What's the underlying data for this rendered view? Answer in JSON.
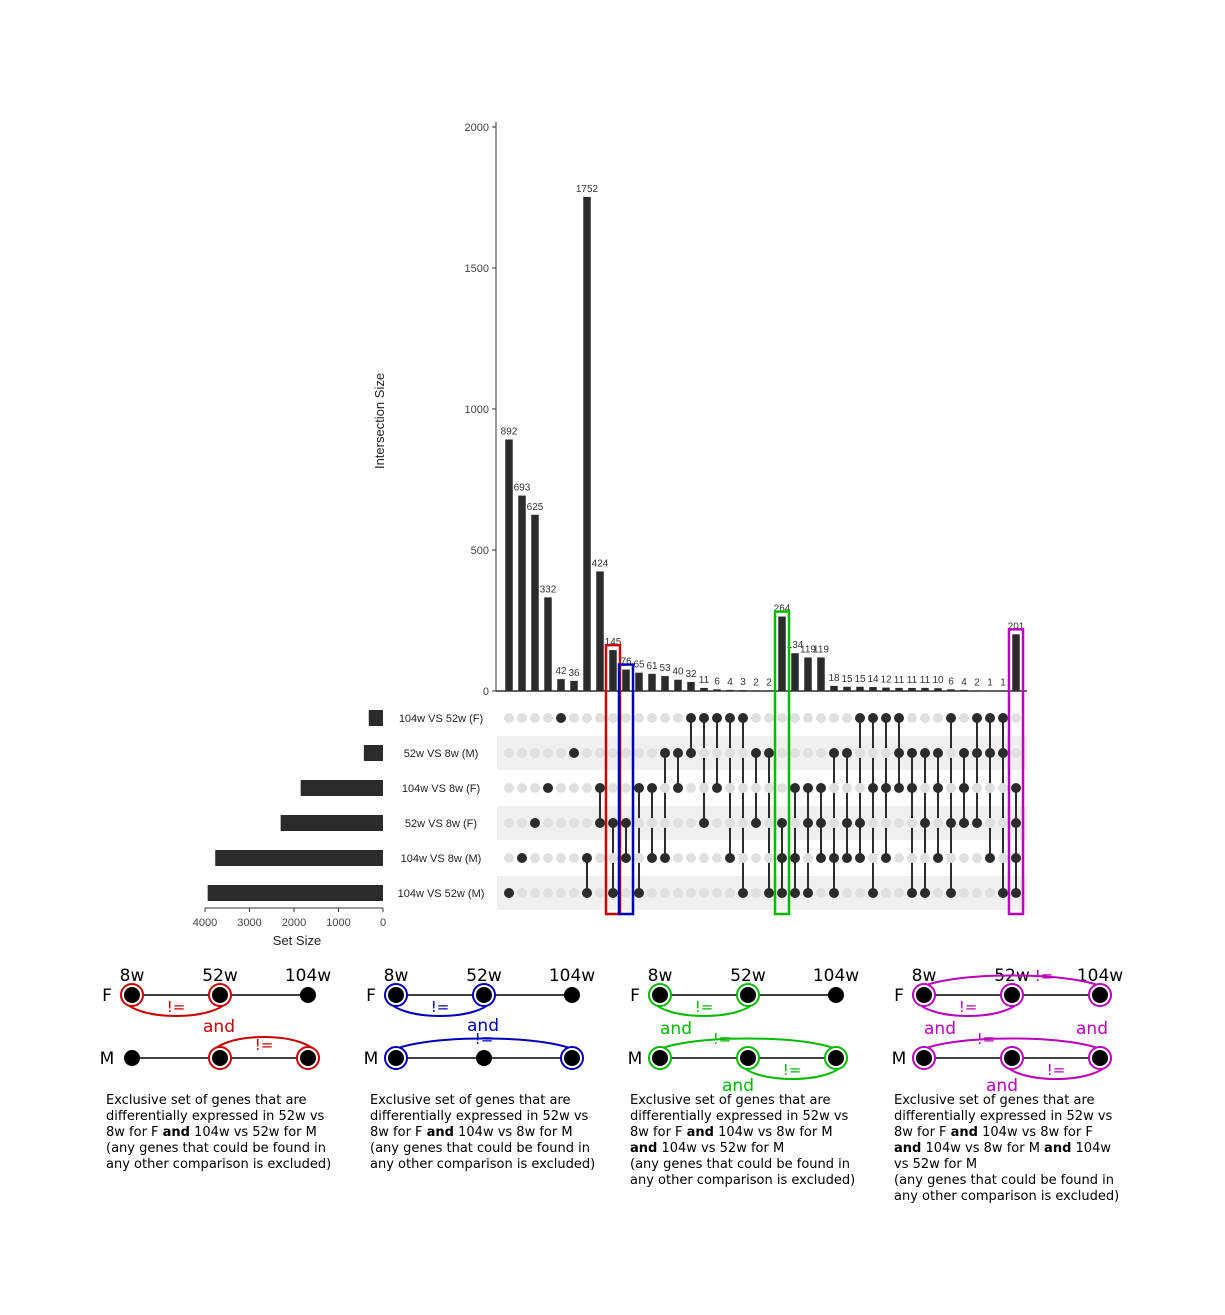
{
  "chart_data": {
    "type": "upset",
    "ylabel": "Intersection Size",
    "ylim": [
      0,
      2000
    ],
    "yticks": [
      0,
      500,
      1000,
      1500,
      2000
    ],
    "set_size_label": "Set Size",
    "set_size_ticks": [
      4000,
      3000,
      2000,
      1000,
      0
    ],
    "sets": [
      {
        "name": "104w VS 52w (F)",
        "size": 320
      },
      {
        "name": "52w VS 8w (M)",
        "size": 430
      },
      {
        "name": "104w VS 8w (F)",
        "size": 1850
      },
      {
        "name": "52w VS 8w (F)",
        "size": 2300
      },
      {
        "name": "104w VS 8w (M)",
        "size": 3770
      },
      {
        "name": "104w VS 52w (M)",
        "size": 3940
      }
    ],
    "intersections": [
      {
        "value": 892,
        "sets": [
          5
        ]
      },
      {
        "value": 693,
        "sets": [
          4
        ]
      },
      {
        "value": 625,
        "sets": [
          3
        ]
      },
      {
        "value": 332,
        "sets": [
          2
        ]
      },
      {
        "value": 42,
        "sets": [
          0
        ]
      },
      {
        "value": 36,
        "sets": [
          1
        ]
      },
      {
        "value": 1752,
        "sets": [
          4,
          5
        ]
      },
      {
        "value": 424,
        "sets": [
          2,
          3
        ]
      },
      {
        "value": 145,
        "sets": [
          3,
          5
        ]
      },
      {
        "value": 76,
        "sets": [
          3,
          4
        ]
      },
      {
        "value": 65,
        "sets": [
          2,
          5
        ]
      },
      {
        "value": 61,
        "sets": [
          2,
          4
        ]
      },
      {
        "value": 53,
        "sets": [
          1,
          4
        ]
      },
      {
        "value": 40,
        "sets": [
          1,
          2
        ]
      },
      {
        "value": 32,
        "sets": [
          0,
          1
        ]
      },
      {
        "value": 11,
        "sets": [
          0,
          3
        ]
      },
      {
        "value": 6,
        "sets": [
          0,
          2
        ]
      },
      {
        "value": 4,
        "sets": [
          0,
          4
        ]
      },
      {
        "value": 3,
        "sets": [
          0,
          5
        ]
      },
      {
        "value": 2,
        "sets": [
          1,
          3
        ]
      },
      {
        "value": 2,
        "sets": [
          1,
          5
        ]
      },
      {
        "value": 264,
        "sets": [
          3,
          4,
          5
        ]
      },
      {
        "value": 134,
        "sets": [
          2,
          4,
          5
        ]
      },
      {
        "value": 119,
        "sets": [
          2,
          3,
          5
        ]
      },
      {
        "value": 119,
        "sets": [
          2,
          3,
          4
        ]
      },
      {
        "value": 18,
        "sets": [
          1,
          4,
          5
        ]
      },
      {
        "value": 15,
        "sets": [
          1,
          3,
          4
        ]
      },
      {
        "value": 15,
        "sets": [
          0,
          3,
          4
        ]
      },
      {
        "value": 14,
        "sets": [
          0,
          2,
          5
        ]
      },
      {
        "value": 12,
        "sets": [
          0,
          2,
          4
        ]
      },
      {
        "value": 11,
        "sets": [
          0,
          1,
          2
        ]
      },
      {
        "value": 11,
        "sets": [
          1,
          2,
          5
        ]
      },
      {
        "value": 11,
        "sets": [
          1,
          3,
          5
        ]
      },
      {
        "value": 10,
        "sets": [
          1,
          2,
          4
        ]
      },
      {
        "value": 6,
        "sets": [
          0,
          3,
          5
        ]
      },
      {
        "value": 4,
        "sets": [
          1,
          2,
          3
        ]
      },
      {
        "value": 2,
        "sets": [
          0,
          1,
          3
        ]
      },
      {
        "value": 1,
        "sets": [
          0,
          1,
          4
        ]
      },
      {
        "value": 1,
        "sets": [
          0,
          1,
          5
        ]
      },
      {
        "value": 201,
        "sets": [
          2,
          3,
          4,
          5
        ]
      }
    ],
    "highlights": [
      {
        "color": "#cc0000",
        "column": 8
      },
      {
        "color": "#0000bb",
        "column": 9
      },
      {
        "color": "#00bb00",
        "column": 21
      },
      {
        "color": "#bb00bb",
        "column": 39
      }
    ]
  },
  "diagram": {
    "time_labels": [
      "8w",
      "52w",
      "104w"
    ],
    "row_labels": [
      "F",
      "M"
    ],
    "neq": "!=",
    "and": "and"
  },
  "captions": [
    [
      "Exclusive set of genes that are",
      "differentially expressed in 52w vs",
      "8w for F |and| 104w vs 52w for M",
      "(any genes that could be found in",
      "any other comparison is excluded)"
    ],
    [
      "Exclusive set of genes that are",
      "differentially expressed in 52w vs",
      "8w for F |and| 104w vs 8w for M",
      "(any genes that could be found in",
      "any other comparison is excluded)"
    ],
    [
      "Exclusive set of genes that are",
      "differentially expressed in 52w vs",
      "8w for F |and| 104w vs 8w for M",
      "|and| 104w vs 52w for M",
      "(any genes that could be found in",
      "any other comparison is excluded)"
    ],
    [
      "Exclusive set of genes that are",
      "differentially expressed in 52w vs",
      "8w for F |and| 104w vs 8w for F",
      "|and| 104w vs 8w for M |and| 104w",
      "vs 52w for M",
      "(any genes that could be found in",
      "any other comparison is excluded)"
    ]
  ]
}
